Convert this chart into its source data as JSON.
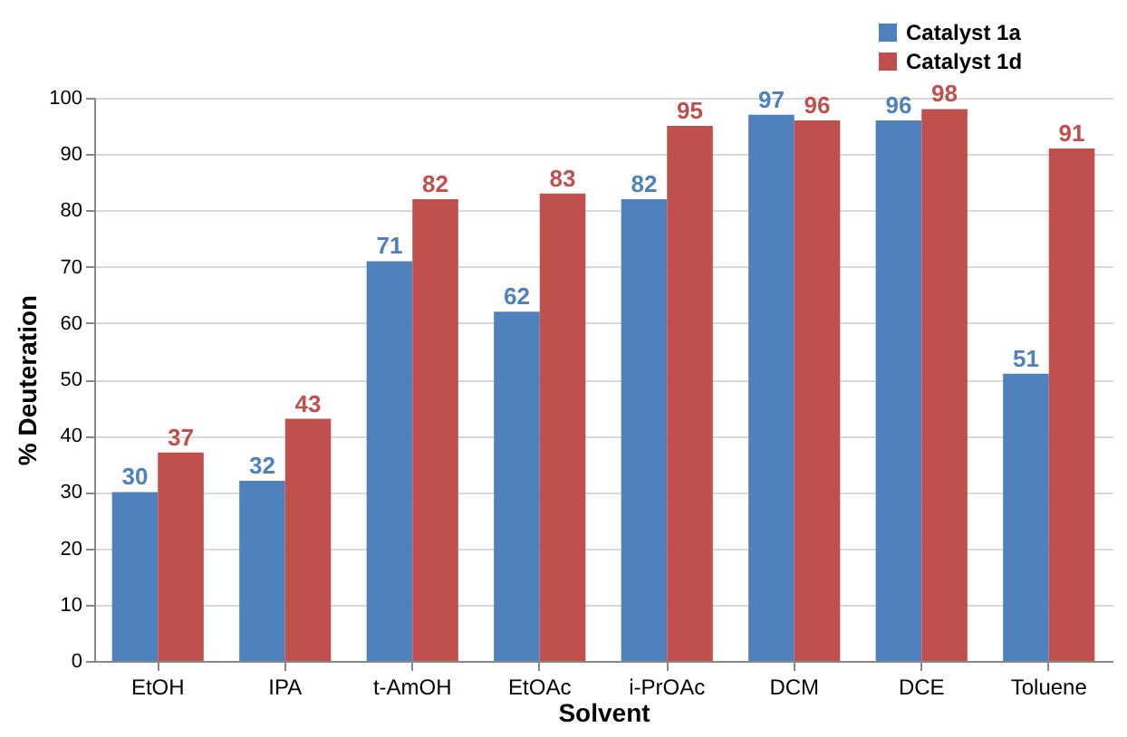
{
  "chart_data": {
    "type": "bar",
    "xlabel": "Solvent",
    "ylabel": "% Deuteration",
    "categories": [
      "EtOH",
      "IPA",
      "t-AmOH",
      "EtOAc",
      "i-PrOAc",
      "DCM",
      "DCE",
      "Toluene"
    ],
    "series": [
      {
        "name": "Catalyst 1a",
        "color": "#4f81bd",
        "values": [
          30,
          32,
          71,
          62,
          82,
          97,
          96,
          51
        ]
      },
      {
        "name": "Catalyst 1d",
        "color": "#c0504d",
        "values": [
          37,
          43,
          82,
          83,
          95,
          96,
          98,
          91
        ]
      }
    ],
    "ylim": [
      0,
      100
    ],
    "yticks": [
      0,
      10,
      20,
      30,
      40,
      50,
      60,
      70,
      80,
      90,
      100
    ],
    "grid": "y",
    "legend": "top right",
    "data_labels": true
  }
}
